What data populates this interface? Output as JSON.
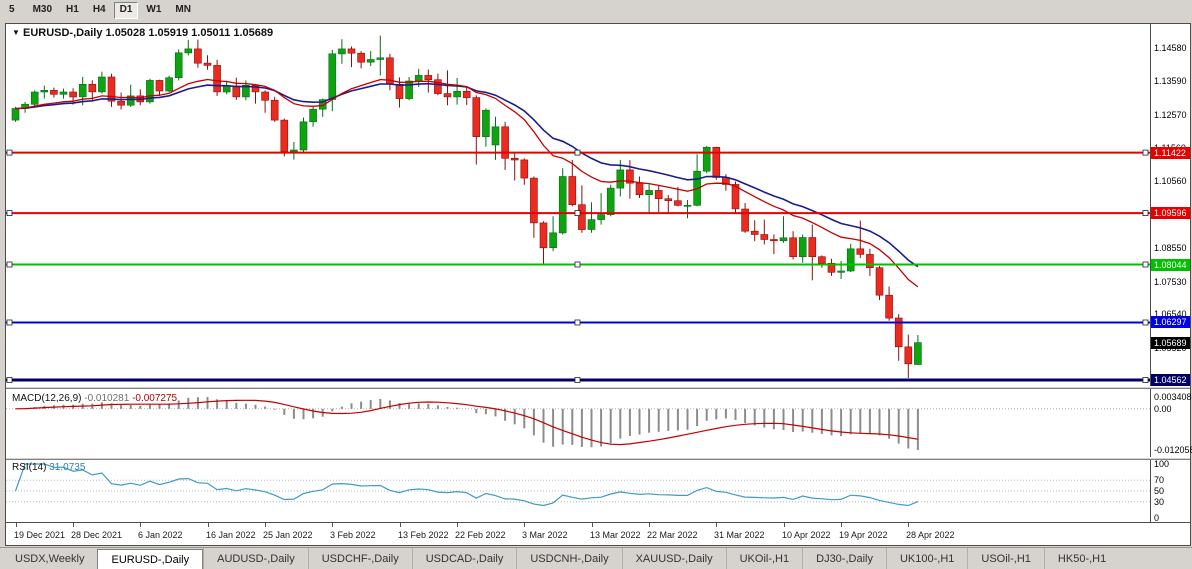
{
  "toolbar": {
    "timeframes": [
      "5",
      "M30",
      "H1",
      "H4",
      "D1",
      "W1",
      "MN"
    ],
    "active_timeframe": "D1"
  },
  "chart": {
    "window_marker": "▼",
    "symbol_label": "EURUSD-,Daily",
    "ohlc_label": "1.05028 1.05919 1.05011 1.05689"
  },
  "macd": {
    "label": "MACD(12,26,9)",
    "value_main": "-0.010281",
    "value_signal": "-0.007275",
    "axis": [
      "0.003408",
      "0.00",
      "-0.012058"
    ]
  },
  "rsi": {
    "label": "RSI(14)",
    "value": "31.0735",
    "levels": [
      100,
      70,
      50,
      30,
      0
    ]
  },
  "tabs": [
    {
      "label": "USDX,Weekly",
      "active": false
    },
    {
      "label": "EURUSD-,Daily",
      "active": true
    },
    {
      "label": "AUDUSD-,Daily",
      "active": false
    },
    {
      "label": "USDCHF-,Daily",
      "active": false
    },
    {
      "label": "USDCAD-,Daily",
      "active": false
    },
    {
      "label": "USDCNH-,Daily",
      "active": false
    },
    {
      "label": "XAUUSD-,Daily",
      "active": false
    },
    {
      "label": "UKOil-,H1",
      "active": false
    },
    {
      "label": "DJ30-,Daily",
      "active": false
    },
    {
      "label": "UK100-,H1",
      "active": false
    },
    {
      "label": "USOil-,H1",
      "active": false
    },
    {
      "label": "HK50-,H1",
      "active": false
    }
  ],
  "chart_data": {
    "type": "candlestick",
    "symbol": "EURUSD",
    "timeframe": "Daily",
    "last_bar": {
      "open": 1.05028,
      "high": 1.05919,
      "low": 1.05011,
      "close": 1.05689
    },
    "price_range": {
      "max": 1.153,
      "min": 1.0438
    },
    "y_axis_labels": [
      "1.14580",
      "1.13590",
      "1.12570",
      "1.11560",
      "1.10560",
      "1.09550",
      "1.08550",
      "1.07530",
      "1.06540",
      "1.05520",
      "1.04500"
    ],
    "hlines": [
      {
        "value": 1.11422,
        "label": "1.11422",
        "color": "#e60000",
        "width": 2
      },
      {
        "value": 1.09596,
        "label": "1.09596",
        "color": "#e60000",
        "width": 2
      },
      {
        "value": 1.08044,
        "label": "1.08044",
        "color": "#00c000",
        "width": 2
      },
      {
        "value": 1.06297,
        "label": "1.06297",
        "color": "#0000e6",
        "width": 2
      },
      {
        "value": 1.04562,
        "label": "1.04562",
        "color": "#000066",
        "width": 3
      }
    ],
    "current_price": {
      "value": 1.05689,
      "label": "1.05689",
      "color": "#000000"
    },
    "colors": {
      "bull": "#10a310",
      "bull_edge": "#056b1e",
      "bear": "#ea2b20",
      "bear_edge": "#8f0d0d",
      "ma_fast": "#c40000",
      "ma_slow": "#1c1c8f",
      "macd_hist": "#8c8c8c",
      "macd_signal": "#c40000",
      "rsi_line": "#3f9bc7"
    },
    "ma_fast_period": 16,
    "ma_slow_period": 24,
    "date_ticks": [
      {
        "bar": 0,
        "label": "19 Dec 2021"
      },
      {
        "bar": 6,
        "label": "28 Dec 2021"
      },
      {
        "bar": 13,
        "label": "6 Jan 2022"
      },
      {
        "bar": 20,
        "label": "16 Jan 2022"
      },
      {
        "bar": 26,
        "label": "25 Jan 2022"
      },
      {
        "bar": 33,
        "label": "3 Feb 2022"
      },
      {
        "bar": 40,
        "label": "13 Feb 2022"
      },
      {
        "bar": 46,
        "label": "22 Feb 2022"
      },
      {
        "bar": 53,
        "label": "3 Mar 2022"
      },
      {
        "bar": 60,
        "label": "13 Mar 2022"
      },
      {
        "bar": 66,
        "label": "22 Mar 2022"
      },
      {
        "bar": 73,
        "label": "31 Mar 2022"
      },
      {
        "bar": 80,
        "label": "10 Apr 2022"
      },
      {
        "bar": 86,
        "label": "19 Apr 2022"
      },
      {
        "bar": 93,
        "label": "28 Apr 2022"
      }
    ],
    "ohlc": [
      [
        1.124,
        1.128,
        1.1235,
        1.1275
      ],
      [
        1.1275,
        1.1295,
        1.1262,
        1.1288
      ],
      [
        1.1288,
        1.133,
        1.128,
        1.1325
      ],
      [
        1.1325,
        1.1344,
        1.1305,
        1.133
      ],
      [
        1.133,
        1.1338,
        1.1308,
        1.1318
      ],
      [
        1.1318,
        1.1335,
        1.1305,
        1.1325
      ],
      [
        1.1325,
        1.1336,
        1.1287,
        1.131
      ],
      [
        1.131,
        1.137,
        1.1285,
        1.1348
      ],
      [
        1.1348,
        1.136,
        1.13,
        1.1325
      ],
      [
        1.1325,
        1.1386,
        1.132,
        1.137
      ],
      [
        1.137,
        1.138,
        1.128,
        1.1297
      ],
      [
        1.1297,
        1.1323,
        1.1272,
        1.1285
      ],
      [
        1.1285,
        1.1347,
        1.128,
        1.1313
      ],
      [
        1.1313,
        1.1333,
        1.1285,
        1.1295
      ],
      [
        1.1295,
        1.1365,
        1.129,
        1.136
      ],
      [
        1.136,
        1.1362,
        1.1313,
        1.1328
      ],
      [
        1.1328,
        1.1374,
        1.1325,
        1.1368
      ],
      [
        1.1368,
        1.1453,
        1.136,
        1.1443
      ],
      [
        1.1443,
        1.1482,
        1.1435,
        1.1455
      ],
      [
        1.1455,
        1.1483,
        1.1398,
        1.1412
      ],
      [
        1.1412,
        1.1436,
        1.1392,
        1.1405
      ],
      [
        1.1405,
        1.1422,
        1.1313,
        1.1325
      ],
      [
        1.1325,
        1.1359,
        1.1318,
        1.1343
      ],
      [
        1.1343,
        1.1368,
        1.1301,
        1.131
      ],
      [
        1.131,
        1.136,
        1.13,
        1.1345
      ],
      [
        1.1345,
        1.1349,
        1.129,
        1.1325
      ],
      [
        1.1325,
        1.133,
        1.1262,
        1.13
      ],
      [
        1.13,
        1.131,
        1.1235,
        1.124
      ],
      [
        1.124,
        1.1245,
        1.1131,
        1.1145
      ],
      [
        1.1145,
        1.1174,
        1.1121,
        1.115
      ],
      [
        1.115,
        1.1248,
        1.114,
        1.1235
      ],
      [
        1.1235,
        1.128,
        1.122,
        1.1273
      ],
      [
        1.1273,
        1.1305,
        1.125,
        1.1302
      ],
      [
        1.1302,
        1.1452,
        1.1267,
        1.144
      ],
      [
        1.144,
        1.1484,
        1.141,
        1.1455
      ],
      [
        1.1455,
        1.1462,
        1.14,
        1.1442
      ],
      [
        1.1442,
        1.1448,
        1.1396,
        1.1415
      ],
      [
        1.1415,
        1.1448,
        1.1403,
        1.1423
      ],
      [
        1.1423,
        1.1495,
        1.1375,
        1.1428
      ],
      [
        1.1428,
        1.144,
        1.133,
        1.1348
      ],
      [
        1.1348,
        1.1369,
        1.1278,
        1.1305
      ],
      [
        1.1305,
        1.137,
        1.13,
        1.1358
      ],
      [
        1.1358,
        1.1395,
        1.134,
        1.1375
      ],
      [
        1.1375,
        1.1393,
        1.1323,
        1.1362
      ],
      [
        1.1362,
        1.138,
        1.1315,
        1.132
      ],
      [
        1.132,
        1.139,
        1.1285,
        1.131
      ],
      [
        1.131,
        1.1367,
        1.1287,
        1.1327
      ],
      [
        1.1327,
        1.1342,
        1.1286,
        1.1308
      ],
      [
        1.1308,
        1.1315,
        1.1106,
        1.119
      ],
      [
        1.119,
        1.1275,
        1.116,
        1.127
      ],
      [
        1.1165,
        1.125,
        1.112,
        1.122
      ],
      [
        1.122,
        1.1235,
        1.109,
        1.1125
      ],
      [
        1.1125,
        1.114,
        1.1058,
        1.112
      ],
      [
        1.112,
        1.1125,
        1.1045,
        1.1065
      ],
      [
        1.1065,
        1.107,
        1.0885,
        1.093
      ],
      [
        1.093,
        1.0935,
        1.0805,
        1.0855
      ],
      [
        1.0855,
        1.095,
        1.0845,
        1.09
      ],
      [
        1.09,
        1.1095,
        1.0895,
        1.107
      ],
      [
        1.107,
        1.112,
        1.098,
        1.0985
      ],
      [
        1.0985,
        1.1043,
        1.09,
        1.091
      ],
      [
        1.091,
        1.0992,
        1.09,
        1.094
      ],
      [
        1.094,
        1.102,
        1.0925,
        1.0955
      ],
      [
        1.0955,
        1.1045,
        1.095,
        1.1035
      ],
      [
        1.1035,
        1.112,
        1.101,
        1.109
      ],
      [
        1.109,
        1.1119,
        1.1003,
        1.105
      ],
      [
        1.105,
        1.107,
        1.1005,
        1.1015
      ],
      [
        1.1015,
        1.1046,
        1.096,
        1.1028
      ],
      [
        1.1028,
        1.1044,
        1.0963,
        1.1003
      ],
      [
        1.1003,
        1.1014,
        1.096,
        1.0997
      ],
      [
        1.0997,
        1.1039,
        1.098,
        1.0983
      ],
      [
        1.0983,
        1.0999,
        1.0944,
        1.0983
      ],
      [
        1.0983,
        1.1137,
        1.098,
        1.1086
      ],
      [
        1.1086,
        1.1162,
        1.108,
        1.1158
      ],
      [
        1.1158,
        1.116,
        1.106,
        1.1067
      ],
      [
        1.1067,
        1.1077,
        1.1027,
        1.1046
      ],
      [
        1.1046,
        1.1055,
        1.096,
        1.0972
      ],
      [
        1.0972,
        1.099,
        1.09,
        1.0905
      ],
      [
        1.0905,
        1.0938,
        1.0875,
        1.0895
      ],
      [
        1.0895,
        1.094,
        1.0865,
        1.088
      ],
      [
        1.088,
        1.0895,
        1.0836,
        1.0876
      ],
      [
        1.0876,
        1.095,
        1.087,
        1.0885
      ],
      [
        1.0885,
        1.0905,
        1.082,
        1.0828
      ],
      [
        1.0828,
        1.0895,
        1.081,
        1.0886
      ],
      [
        1.0886,
        1.0925,
        1.0757,
        1.0828
      ],
      [
        1.0828,
        1.0832,
        1.0795,
        1.0808
      ],
      [
        1.0808,
        1.0822,
        1.077,
        1.0781
      ],
      [
        1.0781,
        1.0815,
        1.0761,
        1.0785
      ],
      [
        1.0785,
        1.0867,
        1.0782,
        1.0852
      ],
      [
        1.0852,
        1.0937,
        1.0824,
        1.0835
      ],
      [
        1.0835,
        1.0852,
        1.077,
        1.0795
      ],
      [
        1.0795,
        1.08,
        1.0697,
        1.0712
      ],
      [
        1.0712,
        1.0738,
        1.0635,
        1.0643
      ],
      [
        1.0643,
        1.0655,
        1.0514,
        1.0556
      ],
      [
        1.0556,
        1.0593,
        1.0462,
        1.0505
      ],
      [
        1.05028,
        1.05919,
        1.05011,
        1.05689
      ]
    ]
  }
}
